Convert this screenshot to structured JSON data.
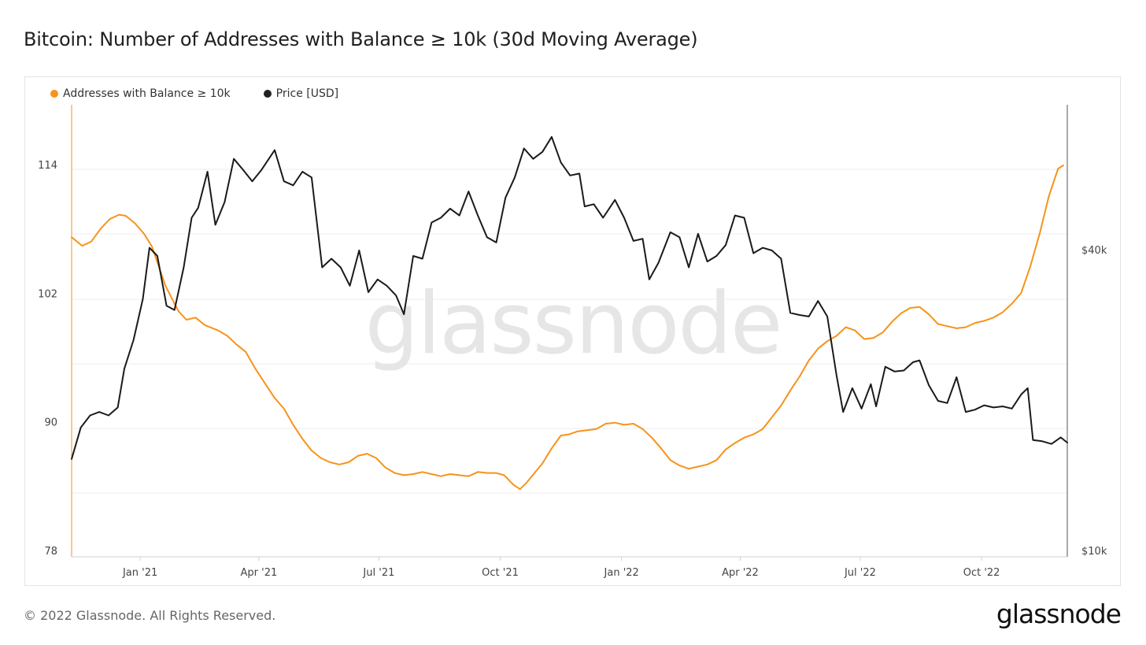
{
  "title": "Bitcoin: Number of Addresses with Balance ≥ 10k (30d Moving Average)",
  "legend": {
    "series_a": "Addresses with Balance ≥ 10k",
    "series_b": "Price [USD]"
  },
  "colors": {
    "addresses": "#f7931a",
    "price": "#1a1a1a"
  },
  "footer": {
    "copyright": "© 2022 Glassnode. All Rights Reserved.",
    "logo": "glassnode"
  },
  "watermark": "glassnode",
  "chart_data": {
    "type": "line",
    "x_ticks": [
      "Jan '21",
      "Apr '21",
      "Jul '21",
      "Oct '21",
      "Jan '22",
      "Apr '22",
      "Jul '22",
      "Oct '22"
    ],
    "y_left_ticks": [
      "78",
      "90",
      "102",
      "114"
    ],
    "y_right_ticks": [
      "$10k",
      "$40k"
    ],
    "y_left_range": [
      78,
      114
    ],
    "y_right_scale": "log",
    "x_range": [
      "2020-11-10",
      "2022-12-05"
    ],
    "legend_position": "top-left",
    "series": [
      {
        "name": "Addresses with Balance ≥ 10k",
        "axis": "left",
        "points": [
          [
            "2020-11-10",
            107.3
          ],
          [
            "2020-11-18",
            106.5
          ],
          [
            "2020-11-25",
            106.9
          ],
          [
            "2020-12-02",
            108.1
          ],
          [
            "2020-12-09",
            109.0
          ],
          [
            "2020-12-16",
            109.4
          ],
          [
            "2020-12-21",
            109.3
          ],
          [
            "2020-12-28",
            108.6
          ],
          [
            "2021-01-04",
            107.6
          ],
          [
            "2021-01-10",
            106.4
          ],
          [
            "2021-01-15",
            104.6
          ],
          [
            "2021-01-20",
            102.8
          ],
          [
            "2021-01-25",
            101.6
          ],
          [
            "2021-01-30",
            100.4
          ],
          [
            "2021-02-05",
            99.6
          ],
          [
            "2021-02-12",
            99.8
          ],
          [
            "2021-02-19",
            99.1
          ],
          [
            "2021-03-01",
            98.6
          ],
          [
            "2021-03-08",
            98.1
          ],
          [
            "2021-03-15",
            97.3
          ],
          [
            "2021-03-22",
            96.6
          ],
          [
            "2021-03-29",
            95.1
          ],
          [
            "2021-04-06",
            93.6
          ],
          [
            "2021-04-13",
            92.3
          ],
          [
            "2021-04-20",
            91.3
          ],
          [
            "2021-04-27",
            89.8
          ],
          [
            "2021-05-04",
            88.5
          ],
          [
            "2021-05-11",
            87.4
          ],
          [
            "2021-05-18",
            86.7
          ],
          [
            "2021-05-25",
            86.3
          ],
          [
            "2021-06-01",
            86.1
          ],
          [
            "2021-06-08",
            86.3
          ],
          [
            "2021-06-15",
            86.9
          ],
          [
            "2021-06-22",
            87.1
          ],
          [
            "2021-06-29",
            86.7
          ],
          [
            "2021-07-06",
            85.8
          ],
          [
            "2021-07-13",
            85.3
          ],
          [
            "2021-07-20",
            85.1
          ],
          [
            "2021-07-27",
            85.2
          ],
          [
            "2021-08-03",
            85.4
          ],
          [
            "2021-08-10",
            85.2
          ],
          [
            "2021-08-17",
            85.0
          ],
          [
            "2021-08-24",
            85.2
          ],
          [
            "2021-08-31",
            85.1
          ],
          [
            "2021-09-07",
            85.0
          ],
          [
            "2021-09-14",
            85.4
          ],
          [
            "2021-09-21",
            85.3
          ],
          [
            "2021-09-28",
            85.3
          ],
          [
            "2021-10-04",
            85.1
          ],
          [
            "2021-10-11",
            84.2
          ],
          [
            "2021-10-16",
            83.8
          ],
          [
            "2021-10-21",
            84.4
          ],
          [
            "2021-10-27",
            85.3
          ],
          [
            "2021-11-02",
            86.2
          ],
          [
            "2021-11-09",
            87.6
          ],
          [
            "2021-11-16",
            88.8
          ],
          [
            "2021-11-22",
            88.9
          ],
          [
            "2021-11-29",
            89.2
          ],
          [
            "2021-12-06",
            89.3
          ],
          [
            "2021-12-13",
            89.4
          ],
          [
            "2021-12-20",
            89.9
          ],
          [
            "2021-12-27",
            90.0
          ],
          [
            "2022-01-03",
            89.8
          ],
          [
            "2022-01-10",
            89.9
          ],
          [
            "2022-01-17",
            89.4
          ],
          [
            "2022-01-24",
            88.6
          ],
          [
            "2022-01-31",
            87.6
          ],
          [
            "2022-02-07",
            86.5
          ],
          [
            "2022-02-14",
            86.0
          ],
          [
            "2022-02-21",
            85.7
          ],
          [
            "2022-02-28",
            85.9
          ],
          [
            "2022-03-07",
            86.1
          ],
          [
            "2022-03-14",
            86.5
          ],
          [
            "2022-03-21",
            87.5
          ],
          [
            "2022-03-28",
            88.1
          ],
          [
            "2022-04-04",
            88.6
          ],
          [
            "2022-04-11",
            88.9
          ],
          [
            "2022-04-18",
            89.4
          ],
          [
            "2022-04-25",
            90.5
          ],
          [
            "2022-05-02",
            91.6
          ],
          [
            "2022-05-09",
            93.0
          ],
          [
            "2022-05-16",
            94.3
          ],
          [
            "2022-05-23",
            95.8
          ],
          [
            "2022-05-30",
            96.9
          ],
          [
            "2022-06-06",
            97.6
          ],
          [
            "2022-06-13",
            98.1
          ],
          [
            "2022-06-20",
            98.9
          ],
          [
            "2022-06-27",
            98.6
          ],
          [
            "2022-07-04",
            97.8
          ],
          [
            "2022-07-11",
            97.9
          ],
          [
            "2022-07-18",
            98.4
          ],
          [
            "2022-07-25",
            99.4
          ],
          [
            "2022-08-01",
            100.2
          ],
          [
            "2022-08-08",
            100.7
          ],
          [
            "2022-08-15",
            100.8
          ],
          [
            "2022-08-22",
            100.1
          ],
          [
            "2022-08-29",
            99.2
          ],
          [
            "2022-09-05",
            99.0
          ],
          [
            "2022-09-12",
            98.8
          ],
          [
            "2022-09-19",
            98.9
          ],
          [
            "2022-09-26",
            99.3
          ],
          [
            "2022-10-03",
            99.5
          ],
          [
            "2022-10-10",
            99.8
          ],
          [
            "2022-10-17",
            100.3
          ],
          [
            "2022-10-24",
            101.1
          ],
          [
            "2022-10-31",
            102.1
          ],
          [
            "2022-11-07",
            104.6
          ],
          [
            "2022-11-14",
            107.6
          ],
          [
            "2022-11-21",
            111.1
          ],
          [
            "2022-11-28",
            113.7
          ],
          [
            "2022-12-02",
            114.0
          ]
        ]
      },
      {
        "name": "Price [USD]",
        "axis": "right",
        "points": [
          [
            "2020-11-10",
            15300
          ],
          [
            "2020-11-17",
            17700
          ],
          [
            "2020-11-24",
            18700
          ],
          [
            "2020-12-01",
            19000
          ],
          [
            "2020-12-08",
            18700
          ],
          [
            "2020-12-15",
            19400
          ],
          [
            "2020-12-20",
            23200
          ],
          [
            "2020-12-27",
            26500
          ],
          [
            "2021-01-03",
            32000
          ],
          [
            "2021-01-08",
            40500
          ],
          [
            "2021-01-14",
            39000
          ],
          [
            "2021-01-21",
            31000
          ],
          [
            "2021-01-27",
            30400
          ],
          [
            "2021-02-03",
            37000
          ],
          [
            "2021-02-09",
            46500
          ],
          [
            "2021-02-14",
            48700
          ],
          [
            "2021-02-21",
            57500
          ],
          [
            "2021-02-27",
            45000
          ],
          [
            "2021-03-06",
            50000
          ],
          [
            "2021-03-13",
            61000
          ],
          [
            "2021-03-20",
            58000
          ],
          [
            "2021-03-27",
            55000
          ],
          [
            "2021-04-03",
            58000
          ],
          [
            "2021-04-13",
            63500
          ],
          [
            "2021-04-20",
            55000
          ],
          [
            "2021-04-27",
            54000
          ],
          [
            "2021-05-04",
            57500
          ],
          [
            "2021-05-11",
            56000
          ],
          [
            "2021-05-19",
            37000
          ],
          [
            "2021-05-26",
            38500
          ],
          [
            "2021-06-02",
            37000
          ],
          [
            "2021-06-09",
            34000
          ],
          [
            "2021-06-16",
            40000
          ],
          [
            "2021-06-23",
            33000
          ],
          [
            "2021-06-30",
            35000
          ],
          [
            "2021-07-07",
            34000
          ],
          [
            "2021-07-14",
            32500
          ],
          [
            "2021-07-20",
            29800
          ],
          [
            "2021-07-27",
            39000
          ],
          [
            "2021-08-03",
            38500
          ],
          [
            "2021-08-10",
            45500
          ],
          [
            "2021-08-17",
            46500
          ],
          [
            "2021-08-24",
            48500
          ],
          [
            "2021-08-31",
            47000
          ],
          [
            "2021-09-07",
            52500
          ],
          [
            "2021-09-14",
            47000
          ],
          [
            "2021-09-21",
            42500
          ],
          [
            "2021-09-28",
            41500
          ],
          [
            "2021-10-05",
            51000
          ],
          [
            "2021-10-12",
            56000
          ],
          [
            "2021-10-19",
            64000
          ],
          [
            "2021-10-26",
            61000
          ],
          [
            "2021-11-02",
            63000
          ],
          [
            "2021-11-09",
            67500
          ],
          [
            "2021-11-16",
            60000
          ],
          [
            "2021-11-23",
            56500
          ],
          [
            "2021-11-30",
            57000
          ],
          [
            "2021-12-04",
            49000
          ],
          [
            "2021-12-11",
            49500
          ],
          [
            "2021-12-18",
            46500
          ],
          [
            "2021-12-27",
            50500
          ],
          [
            "2022-01-03",
            46500
          ],
          [
            "2022-01-10",
            41800
          ],
          [
            "2022-01-17",
            42200
          ],
          [
            "2022-01-22",
            35000
          ],
          [
            "2022-01-29",
            37800
          ],
          [
            "2022-02-07",
            43500
          ],
          [
            "2022-02-14",
            42500
          ],
          [
            "2022-02-21",
            37000
          ],
          [
            "2022-02-28",
            43200
          ],
          [
            "2022-03-07",
            38000
          ],
          [
            "2022-03-14",
            39000
          ],
          [
            "2022-03-21",
            41000
          ],
          [
            "2022-03-28",
            47000
          ],
          [
            "2022-04-04",
            46500
          ],
          [
            "2022-04-11",
            39500
          ],
          [
            "2022-04-18",
            40500
          ],
          [
            "2022-04-25",
            40000
          ],
          [
            "2022-05-02",
            38500
          ],
          [
            "2022-05-09",
            30000
          ],
          [
            "2022-05-16",
            29700
          ],
          [
            "2022-05-23",
            29500
          ],
          [
            "2022-05-30",
            31700
          ],
          [
            "2022-06-06",
            29500
          ],
          [
            "2022-06-13",
            22500
          ],
          [
            "2022-06-18",
            19000
          ],
          [
            "2022-06-25",
            21200
          ],
          [
            "2022-07-02",
            19300
          ],
          [
            "2022-07-09",
            21600
          ],
          [
            "2022-07-13",
            19500
          ],
          [
            "2022-07-20",
            23400
          ],
          [
            "2022-07-27",
            22900
          ],
          [
            "2022-08-03",
            23000
          ],
          [
            "2022-08-10",
            23900
          ],
          [
            "2022-08-15",
            24100
          ],
          [
            "2022-08-22",
            21500
          ],
          [
            "2022-08-29",
            20000
          ],
          [
            "2022-09-05",
            19800
          ],
          [
            "2022-09-12",
            22300
          ],
          [
            "2022-09-19",
            19000
          ],
          [
            "2022-09-26",
            19200
          ],
          [
            "2022-10-03",
            19600
          ],
          [
            "2022-10-10",
            19400
          ],
          [
            "2022-10-17",
            19500
          ],
          [
            "2022-10-24",
            19300
          ],
          [
            "2022-10-31",
            20600
          ],
          [
            "2022-11-05",
            21200
          ],
          [
            "2022-11-09",
            16700
          ],
          [
            "2022-11-16",
            16600
          ],
          [
            "2022-11-23",
            16400
          ],
          [
            "2022-11-30",
            16900
          ],
          [
            "2022-12-05",
            16500
          ]
        ]
      }
    ]
  }
}
